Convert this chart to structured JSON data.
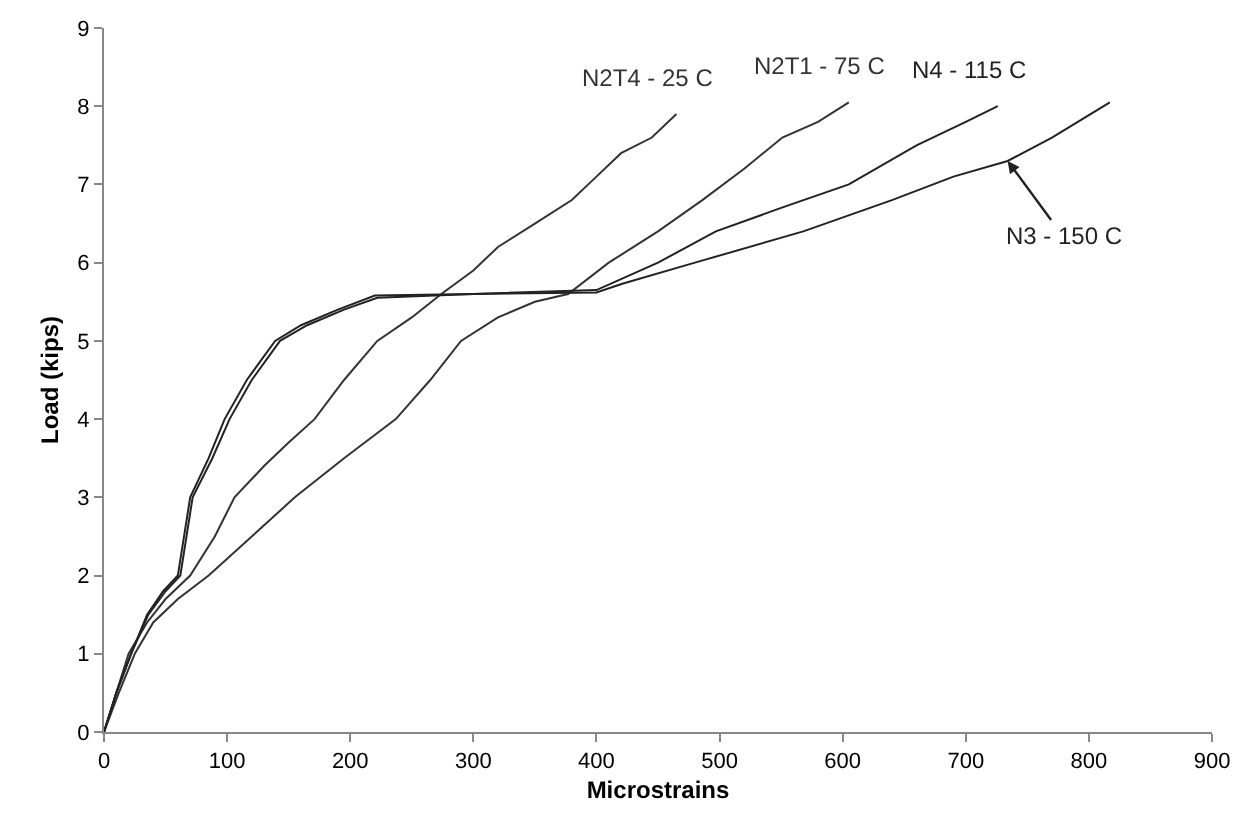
{
  "chart_data": {
    "type": "line",
    "xlabel": "Microstrains",
    "ylabel": "Load (kips)",
    "xlim": [
      0,
      900
    ],
    "ylim": [
      0,
      9
    ],
    "xticks": [
      0,
      100,
      200,
      300,
      400,
      500,
      600,
      700,
      800,
      900
    ],
    "yticks": [
      0,
      1,
      2,
      3,
      4,
      5,
      6,
      7,
      8,
      9
    ],
    "grid": false,
    "legend": false,
    "marker": "none",
    "line_style": "solid",
    "series": [
      {
        "name": "N2T4 - 25 C",
        "color": "#333333",
        "x": [
          0,
          10,
          20,
          35,
          50,
          70,
          90,
          106,
          130,
          150,
          171,
          195,
          222,
          250,
          274,
          300,
          320,
          350,
          380,
          400,
          420,
          445,
          465
        ],
        "values": [
          0,
          0.5,
          1,
          1.4,
          1.7,
          2,
          2.5,
          3,
          3.4,
          3.7,
          4,
          4.5,
          5,
          5.3,
          5.6,
          5.9,
          6.2,
          6.5,
          6.8,
          7.1,
          7.4,
          7.6,
          7.9
        ]
      },
      {
        "name": "N2T1 - 75 C",
        "color": "#333333",
        "x": [
          0,
          12,
          25,
          40,
          60,
          85,
          120,
          155,
          195,
          237,
          265,
          290,
          320,
          350,
          377,
          410,
          450,
          486,
          520,
          551,
          580,
          605
        ],
        "values": [
          0,
          0.5,
          1,
          1.4,
          1.7,
          2,
          2.5,
          3,
          3.5,
          4,
          4.5,
          5,
          5.3,
          5.5,
          5.6,
          6,
          6.4,
          6.8,
          7.2,
          7.6,
          7.8,
          8.05
        ]
      },
      {
        "name": "N4 - 115 C",
        "color": "#222222",
        "x": [
          0,
          10,
          22,
          35,
          48,
          60,
          70,
          85,
          98,
          116,
          139,
          160,
          190,
          220,
          300,
          400,
          450,
          497,
          550,
          605,
          660,
          700,
          726
        ],
        "values": [
          0,
          0.5,
          1,
          1.5,
          1.8,
          2,
          3,
          3.5,
          4,
          4.5,
          5,
          5.2,
          5.4,
          5.58,
          5.6,
          5.65,
          6,
          6.4,
          6.7,
          7,
          7.5,
          7.8,
          8
        ]
      },
      {
        "name": "N3 - 150 C",
        "color": "#222222",
        "x": [
          0,
          10,
          22,
          36,
          50,
          62,
          72,
          88,
          102,
          120,
          143,
          165,
          195,
          222,
          300,
          400,
          421,
          480,
          568,
          640,
          690,
          734,
          770,
          817
        ],
        "values": [
          0,
          0.5,
          1,
          1.5,
          1.8,
          2,
          3,
          3.5,
          4,
          4.5,
          5,
          5.2,
          5.4,
          5.55,
          5.6,
          5.62,
          5.73,
          6,
          6.4,
          6.8,
          7.1,
          7.3,
          7.6,
          8.05
        ]
      }
    ]
  }
}
